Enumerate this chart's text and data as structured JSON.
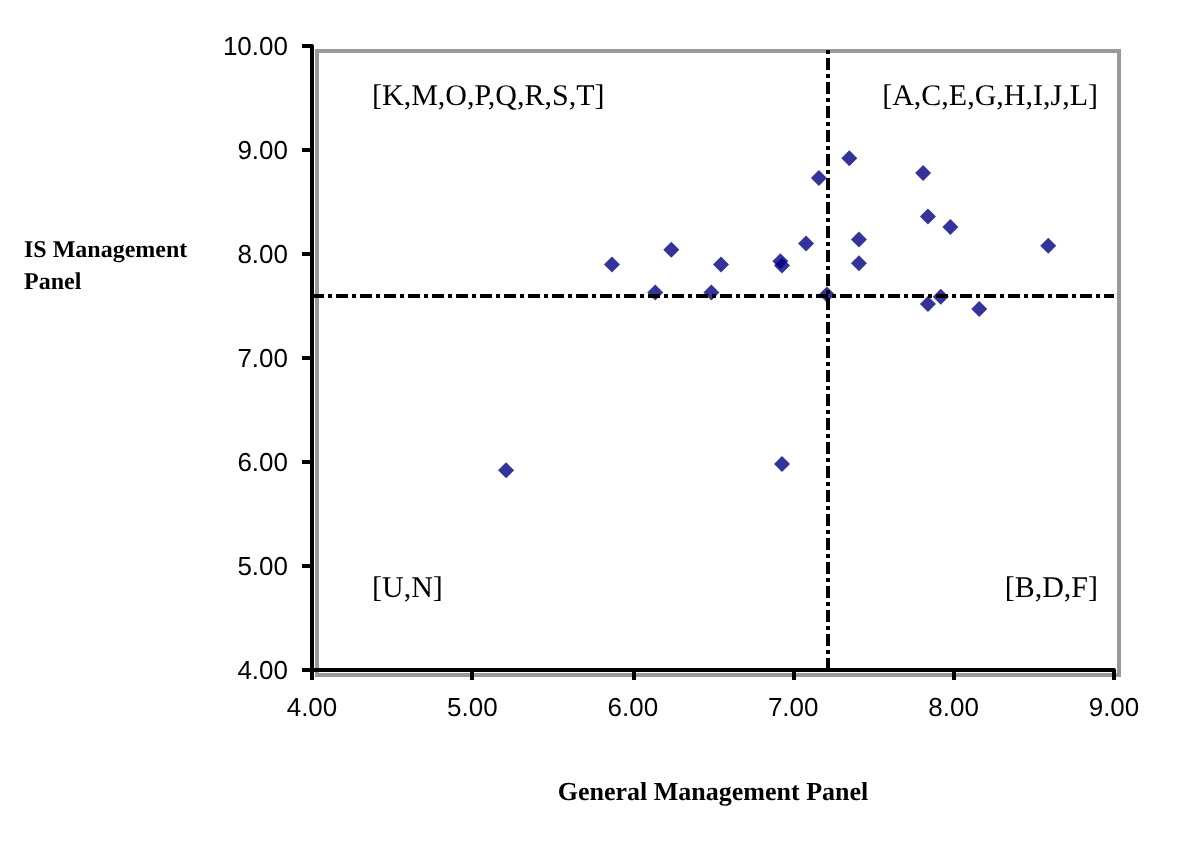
{
  "chart_data": {
    "type": "scatter",
    "xlabel": "General Management Panel",
    "ylabel": "IS Management Panel",
    "x": [
      5.21,
      5.87,
      6.14,
      6.24,
      6.49,
      6.55,
      6.92,
      6.93,
      6.93,
      7.08,
      7.16,
      7.21,
      7.35,
      7.41,
      7.41,
      7.81,
      7.84,
      7.84,
      7.92,
      7.98,
      8.16,
      8.59
    ],
    "values": [
      5.92,
      7.9,
      7.63,
      8.04,
      7.63,
      7.9,
      7.93,
      7.89,
      5.98,
      8.1,
      8.73,
      7.61,
      8.92,
      8.14,
      7.91,
      8.78,
      8.36,
      7.52,
      7.59,
      8.26,
      7.47,
      8.08
    ],
    "color": "#000080",
    "marker": "diamond",
    "grid": false,
    "xlim": [
      4,
      9
    ],
    "xticks": [
      {
        "value": 4,
        "label": "4.00"
      },
      {
        "value": 5,
        "label": "5.00"
      },
      {
        "value": 6,
        "label": "6.00"
      },
      {
        "value": 7,
        "label": "7.00"
      },
      {
        "value": 8,
        "label": "8.00"
      },
      {
        "value": 9,
        "label": "9.00"
      }
    ],
    "ylim": [
      4,
      10
    ],
    "yticks": [
      {
        "value": 4,
        "label": "4.00"
      },
      {
        "value": 5,
        "label": "5.00"
      },
      {
        "value": 6,
        "label": "6.00"
      },
      {
        "value": 7,
        "label": "7.00"
      },
      {
        "value": 8,
        "label": "8.00"
      },
      {
        "value": 9,
        "label": "9.00"
      },
      {
        "value": 10,
        "label": "10.00"
      }
    ],
    "ref_lines": [
      {
        "axis": "x",
        "value": 7.22,
        "line_style": "dashed",
        "color": "#000000"
      },
      {
        "axis": "y",
        "value": 7.6,
        "line_style": "dashed",
        "color": "#000000"
      }
    ],
    "annotations": [
      "[K,M,O,P,Q,R,S,T]",
      "[A,C,E,G,H,I,J,L]",
      "[U,N]",
      "[B,D,F]"
    ]
  }
}
